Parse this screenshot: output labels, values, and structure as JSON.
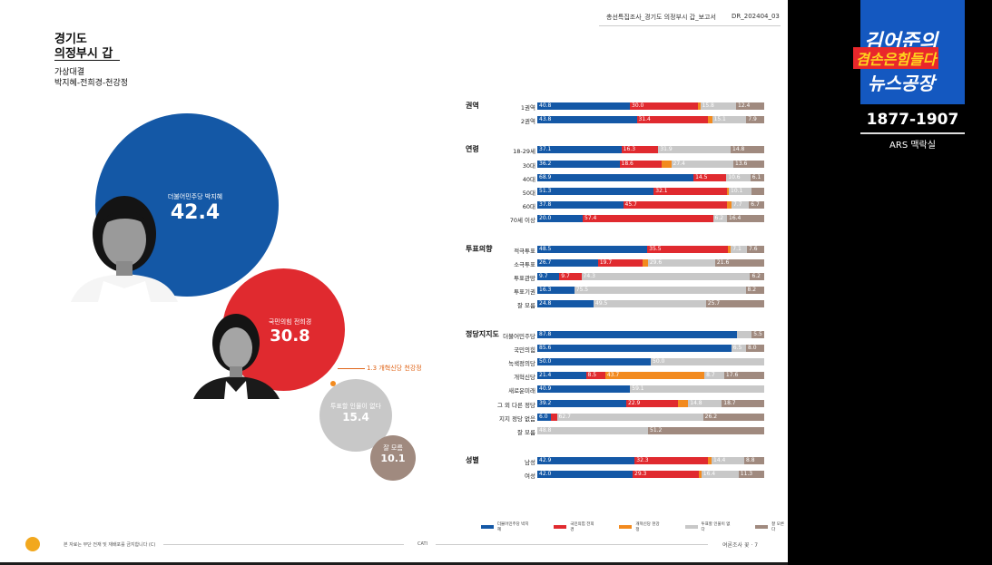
{
  "header": {
    "left": "총선특집조사_경기도 의정부시 갑_보고서",
    "right": "DR_202404_03"
  },
  "title": {
    "region": "경기도",
    "district": "의정부시 갑",
    "sub1": "가상대결",
    "sub2": "박지혜-전희경-천강정"
  },
  "bubbles": {
    "blue": {
      "name": "더불어민주당 박지혜",
      "value": "42.4"
    },
    "red": {
      "name": "국민의힘 전희경",
      "value": "30.8"
    },
    "orange": {
      "name": "1.3 개혁신당 천강정"
    },
    "gray": {
      "name": "투표할 인물이 없다",
      "value": "15.4"
    },
    "brown": {
      "name": "잘 모름",
      "value": "10.1"
    }
  },
  "colors": {
    "blue": "#1458a6",
    "red": "#e02a2f",
    "orange": "#f28a1e",
    "gray": "#c8c8c8",
    "brown": "#a08a7f"
  },
  "chart_data": {
    "type": "bar",
    "stacked": true,
    "series_names": [
      "더불어민주당 박지혜",
      "국민의힘 전희경",
      "개혁신당 천강정",
      "투표할 인물이 없다",
      "잘 모름"
    ],
    "groups": [
      {
        "name": "권역",
        "rows": [
          {
            "label": "1권역",
            "values": [
              40.8,
              30.0,
              1.0,
              15.8,
              12.4
            ],
            "labels": [
              "40.8",
              "30.0",
              "",
              "15.8",
              "12.4"
            ]
          },
          {
            "label": "2권역",
            "values": [
              43.8,
              31.4,
              1.8,
              15.1,
              7.9
            ],
            "labels": [
              "43.8",
              "31.4",
              "",
              "15.1",
              "7.9"
            ]
          }
        ]
      },
      {
        "name": "연령",
        "rows": [
          {
            "label": "18-29세",
            "values": [
              37.1,
              16.3,
              0,
              31.9,
              14.8
            ],
            "labels": [
              "37.1",
              "16.3",
              "",
              "31.9",
              "14.8"
            ]
          },
          {
            "label": "30대",
            "values": [
              36.2,
              18.6,
              4.2,
              27.4,
              13.6
            ],
            "labels": [
              "36.2",
              "18.6",
              "",
              "27.4",
              "13.6"
            ]
          },
          {
            "label": "40대",
            "values": [
              68.9,
              14.5,
              0,
              10.6,
              6.1
            ],
            "labels": [
              "68.9",
              "14.5",
              "",
              "10.6",
              "6.1"
            ]
          },
          {
            "label": "50대",
            "values": [
              51.3,
              32.1,
              1.0,
              10.1,
              5.5
            ],
            "labels": [
              "51.3",
              "32.1",
              "",
              "10.1",
              ""
            ]
          },
          {
            "label": "60대",
            "values": [
              37.8,
              45.7,
              2.1,
              7.7,
              6.7
            ],
            "labels": [
              "37.8",
              "45.7",
              "",
              "7.7",
              "6.7"
            ]
          },
          {
            "label": "70세 이상",
            "values": [
              20.0,
              57.4,
              0,
              6.2,
              16.4
            ],
            "labels": [
              "20.0",
              "57.4",
              "",
              "6.2",
              "16.4"
            ]
          }
        ]
      },
      {
        "name": "투표의향",
        "rows": [
          {
            "label": "적극투표",
            "values": [
              48.5,
              35.5,
              1.3,
              7.1,
              7.6
            ],
            "labels": [
              "48.5",
              "35.5",
              "",
              "7.1",
              "7.6"
            ]
          },
          {
            "label": "소극투표",
            "values": [
              26.7,
              19.7,
              2.3,
              29.6,
              21.6
            ],
            "labels": [
              "26.7",
              "19.7",
              "",
              "29.6",
              "21.6"
            ]
          },
          {
            "label": "투표관망",
            "values": [
              9.7,
              9.7,
              0,
              74.3,
              6.2
            ],
            "labels": [
              "9.7",
              "9.7",
              "",
              "74.3",
              "6.2"
            ]
          },
          {
            "label": "투표기권",
            "values": [
              16.3,
              0,
              0,
              75.5,
              8.2
            ],
            "labels": [
              "16.3",
              "",
              "",
              "75.5",
              "8.2"
            ]
          },
          {
            "label": "잘 모름",
            "values": [
              24.8,
              0,
              0,
              49.5,
              25.7
            ],
            "labels": [
              "24.8",
              "",
              "",
              "49.5",
              "25.7"
            ]
          }
        ]
      },
      {
        "name": "정당지지도",
        "rows": [
          {
            "label": "더불어민주당",
            "values": [
              87.8,
              0,
              0,
              6.7,
              5.5
            ],
            "labels": [
              "87.8",
              "",
              "",
              "",
              "5.5"
            ]
          },
          {
            "label": "국민의힘",
            "values": [
              85.6,
              0,
              0,
              6.5,
              8.0
            ],
            "labels": [
              "85.6",
              "",
              "",
              "6.5",
              "8.0"
            ]
          },
          {
            "label": "녹색정의당",
            "values": [
              50.0,
              0,
              0,
              50.0,
              0
            ],
            "labels": [
              "50.0",
              "",
              "",
              "50.0",
              ""
            ]
          },
          {
            "label": "개혁신당",
            "values": [
              21.4,
              8.5,
              43.7,
              8.7,
              17.6
            ],
            "labels": [
              "21.4",
              "8.5",
              "43.7",
              "8.7",
              "17.6"
            ]
          },
          {
            "label": "새로운미래",
            "values": [
              40.9,
              0,
              0,
              59.1,
              0
            ],
            "labels": [
              "40.9",
              "",
              "",
              "59.1",
              ""
            ]
          },
          {
            "label": "그 외 다른 정당",
            "values": [
              39.2,
              22.9,
              4.4,
              14.8,
              18.7
            ],
            "labels": [
              "39.2",
              "22.9",
              "",
              "14.8",
              "18.7"
            ]
          },
          {
            "label": "지지 정당 없음",
            "values": [
              6.0,
              2.4,
              0,
              62.7,
              26.2
            ],
            "labels": [
              "6.0",
              "",
              "",
              "62.7",
              "26.2"
            ]
          },
          {
            "label": "잘 모름",
            "values": [
              0,
              0,
              0,
              48.8,
              51.2
            ],
            "labels": [
              "",
              "",
              "",
              "48.8",
              "51.2"
            ]
          }
        ]
      },
      {
        "name": "성별",
        "rows": [
          {
            "label": "남성",
            "values": [
              42.9,
              32.3,
              1.6,
              14.4,
              8.8
            ],
            "labels": [
              "42.9",
              "32.3",
              "",
              "14.4",
              "8.8"
            ]
          },
          {
            "label": "여성",
            "values": [
              42.0,
              29.3,
              1.0,
              16.4,
              11.3
            ],
            "labels": [
              "42.0",
              "29.3",
              "",
              "16.4",
              "11.3"
            ]
          }
        ]
      }
    ]
  },
  "legend": [
    "더불어민주당 박지혜",
    "국민의힘 전희경",
    "개혁신당 천강정",
    "투표할 인물이 없다",
    "잘 모른다"
  ],
  "footer": {
    "left": "본 자료는 무단 전재 및 재배포를 금지합니다 (C)",
    "center": "CATI",
    "right": "여론조사 꽃 · 7"
  },
  "overlay": {
    "line1": "김어준의",
    "line2": "겸손은힘들다",
    "line3": "뉴스공장",
    "range": "1877-1907",
    "caption": "ARS 맥락실"
  }
}
